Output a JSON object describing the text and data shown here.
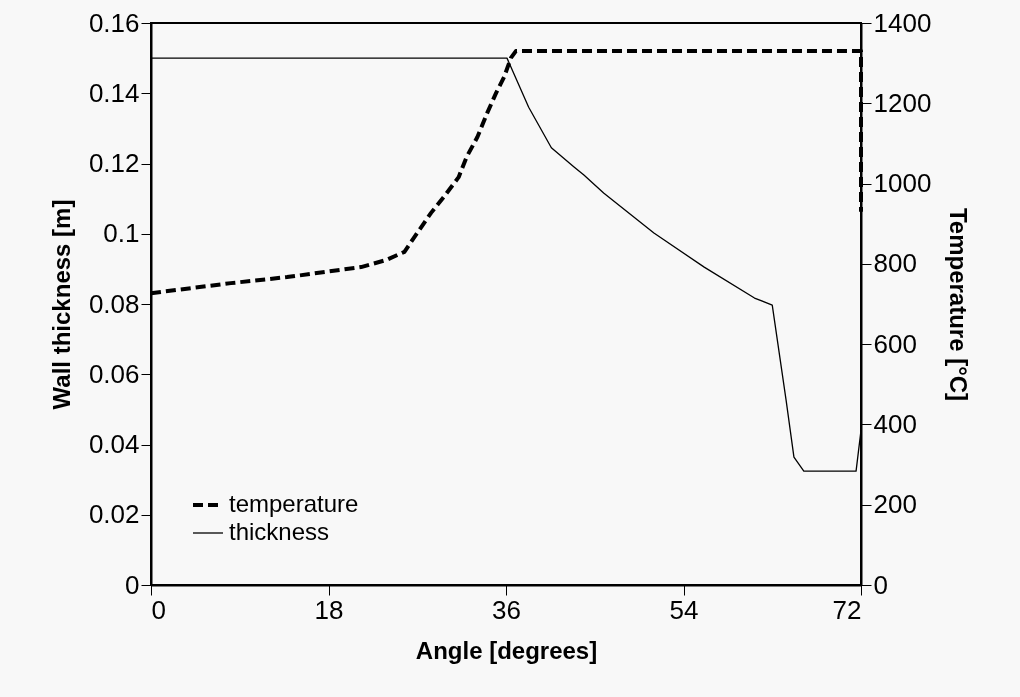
{
  "chart_data": {
    "type": "line",
    "xlabel": "Angle  [degrees]",
    "ylabel": "Wall thickness [m]",
    "y2label": "Temperature  [°C]",
    "xlim": [
      0,
      72
    ],
    "xticks": [
      0,
      18,
      36,
      54,
      72
    ],
    "ylim": [
      0,
      0.16
    ],
    "yticks": [
      0,
      0.02,
      0.04,
      0.06,
      0.08,
      0.1,
      0.12,
      0.14,
      0.16
    ],
    "y2lim": [
      0,
      1400
    ],
    "y2ticks": [
      0,
      200,
      400,
      600,
      800,
      1000,
      1200,
      1400
    ],
    "legend": "bottom left",
    "grid": false,
    "series": [
      {
        "name": "temperature",
        "color": "#000000",
        "axis": "y2",
        "line_style": "dashed",
        "x": [
          0,
          8.1,
          13.8,
          21.3,
          23.9,
          25.7,
          27.0,
          28.4,
          29.7,
          31.2,
          32.0,
          33.1,
          34.1,
          35.0,
          35.8,
          36.5,
          37,
          72,
          72
        ],
        "values": [
          727,
          752,
          767,
          792,
          810,
          830,
          877,
          927,
          967,
          1016,
          1066,
          1116,
          1176,
          1226,
          1265,
          1313,
          1330,
          1330,
          930
        ]
      },
      {
        "name": "thickness",
        "color": "#000000",
        "line_style": "solid",
        "x": [
          0,
          36.1,
          38.3,
          40.6,
          42.9,
          43.9,
          45.9,
          51.0,
          56.1,
          61.2,
          63.0,
          64.4,
          65.2,
          66.2,
          71.5,
          72
        ],
        "values": [
          0.15,
          0.15,
          0.136,
          0.1245,
          0.119,
          0.1167,
          0.1116,
          0.1002,
          0.0905,
          0.0817,
          0.0797,
          0.0527,
          0.0364,
          0.0324,
          0.0324,
          0.044
        ]
      }
    ]
  }
}
